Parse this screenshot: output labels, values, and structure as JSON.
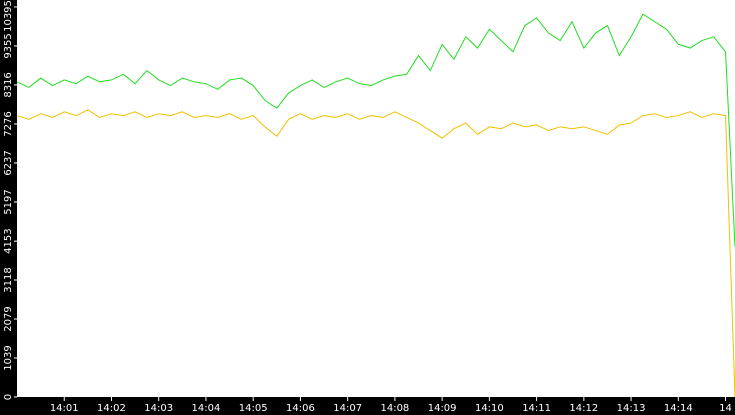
{
  "chart_data": {
    "type": "line",
    "x": [
      0,
      0.25,
      0.5,
      0.75,
      1,
      1.25,
      1.5,
      1.75,
      2,
      2.25,
      2.5,
      2.75,
      3,
      3.25,
      3.5,
      3.75,
      4,
      4.25,
      4.5,
      4.75,
      5,
      5.25,
      5.5,
      5.75,
      6,
      6.25,
      6.5,
      6.75,
      7,
      7.25,
      7.5,
      7.75,
      8,
      8.25,
      8.5,
      8.75,
      9,
      9.25,
      9.5,
      9.75,
      10,
      10.25,
      10.5,
      10.75,
      11,
      11.25,
      11.5,
      11.75,
      12,
      12.25,
      12.5,
      12.75,
      13,
      13.25,
      13.5,
      13.75,
      14,
      14.25,
      14.5,
      14.75,
      15,
      15.2
    ],
    "series": [
      {
        "color": "#22dd22",
        "values": [
          8400,
          8250,
          8500,
          8300,
          8450,
          8350,
          8550,
          8400,
          8450,
          8600,
          8350,
          8700,
          8450,
          8300,
          8500,
          8400,
          8350,
          8200,
          8450,
          8500,
          8300,
          7900,
          7700,
          8100,
          8300,
          8450,
          8250,
          8400,
          8500,
          8350,
          8300,
          8450,
          8550,
          8600,
          9100,
          8700,
          9400,
          9000,
          9600,
          9300,
          9800,
          9500,
          9200,
          9900,
          10100,
          9700,
          9500,
          10000,
          9300,
          9700,
          9900,
          9100,
          9600,
          10200,
          10000,
          9800,
          9400,
          9300,
          9500,
          9600,
          9200,
          4000
        ]
      },
      {
        "color": "#f0c000",
        "values": [
          7500,
          7400,
          7550,
          7450,
          7600,
          7500,
          7650,
          7450,
          7550,
          7500,
          7600,
          7450,
          7550,
          7500,
          7600,
          7450,
          7500,
          7450,
          7550,
          7400,
          7500,
          7200,
          6950,
          7400,
          7550,
          7400,
          7500,
          7450,
          7550,
          7400,
          7500,
          7450,
          7600,
          7450,
          7300,
          7100,
          6900,
          7150,
          7300,
          7000,
          7200,
          7150,
          7300,
          7200,
          7250,
          7100,
          7200,
          7150,
          7200,
          7100,
          7000,
          7250,
          7300,
          7500,
          7550,
          7450,
          7500,
          7600,
          7450,
          7550,
          7500,
          0
        ]
      }
    ],
    "xlim": [
      0,
      15.2
    ],
    "ylim": [
      0,
      10580
    ],
    "yticks": [
      0,
      1039,
      2079,
      3118,
      4153,
      5197,
      6237,
      7276,
      8316,
      9355,
      10395
    ],
    "xticks": [
      {
        "value": 1,
        "label": "14:01"
      },
      {
        "value": 2,
        "label": "14:02"
      },
      {
        "value": 3,
        "label": "14:03"
      },
      {
        "value": 4,
        "label": "14:04"
      },
      {
        "value": 5,
        "label": "14:05"
      },
      {
        "value": 6,
        "label": "14:06"
      },
      {
        "value": 7,
        "label": "14:07"
      },
      {
        "value": 8,
        "label": "14:08"
      },
      {
        "value": 9,
        "label": "14:09"
      },
      {
        "value": 10,
        "label": "14:10"
      },
      {
        "value": 11,
        "label": "14:11"
      },
      {
        "value": 12,
        "label": "14:12"
      },
      {
        "value": 13,
        "label": "14:13"
      },
      {
        "value": 14,
        "label": "14:14"
      },
      {
        "value": 15,
        "label": "14"
      }
    ]
  }
}
